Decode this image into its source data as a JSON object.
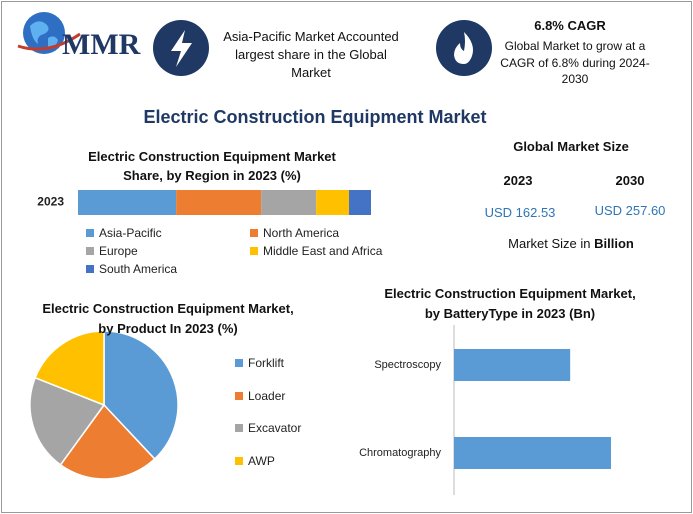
{
  "header": {
    "logo_text": "MMR",
    "highlight_1": "Asia-Pacific Market Accounted largest share in the Global Market",
    "highlight_2_title": "6.8% CAGR",
    "highlight_2_text": "Global Market to grow at a CAGR of 6.8% during 2024-2030"
  },
  "title": "Electric Construction Equipment Market",
  "market_size": {
    "title": "Global Market Size",
    "years": [
      "2023",
      "2030"
    ],
    "values": [
      "USD 162.53",
      "USD 257.60"
    ],
    "note": "Market Size in",
    "note_unit": "Billion"
  },
  "chart_data": [
    {
      "type": "stacked_bar",
      "title": "Electric Construction Equipment Market Share, by Region in 2023 (%)",
      "categories": [
        "2023"
      ],
      "series": [
        {
          "name": "Asia-Pacific",
          "color": "#5b9bd5",
          "values": [
            33.5
          ]
        },
        {
          "name": "North America",
          "color": "#ed7d31",
          "values": [
            29
          ]
        },
        {
          "name": "Europe",
          "color": "#a5a5a5",
          "values": [
            18.8
          ]
        },
        {
          "name": "Middle East and Africa",
          "color": "#ffc000",
          "values": [
            11.2
          ]
        },
        {
          "name": "South America",
          "color": "#4472c4",
          "values": [
            7.5
          ]
        }
      ]
    },
    {
      "type": "pie",
      "title": "Electric Construction Equipment Market, by Product In 2023 (%)",
      "categories": [
        "Forklift",
        "Loader",
        "Excavator",
        "AWP"
      ],
      "values": [
        38,
        22,
        21,
        19
      ],
      "colors": [
        "#5b9bd5",
        "#ed7d31",
        "#a5a5a5",
        "#ffc000"
      ]
    },
    {
      "type": "bar",
      "title": "Electric Construction Equipment Market, by BatteryType in 2023 (Bn)",
      "categories": [
        "Spectroscopy",
        "Chromatography"
      ],
      "values": [
        37,
        50
      ],
      "color": "#5b9bd5"
    }
  ]
}
